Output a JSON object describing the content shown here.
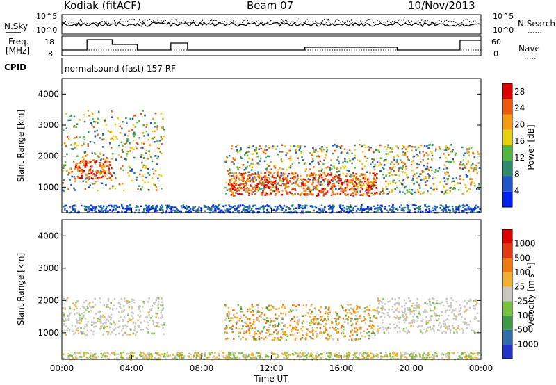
{
  "header": {
    "station": "Kodiak (fitACF)",
    "beam": "Beam 07",
    "date": "10/Nov/2013"
  },
  "params_panel": {
    "nsky_label": "N.Sky",
    "nsearch_label": "N.Search",
    "freq_label_line1": "Freq.",
    "freq_label_line2": "[MHz]",
    "nave_label": "Nave",
    "cpid_label": "CPID",
    "cpid_text": "normalsound (fast) 157 RF",
    "noise_ticks": [
      "10^5",
      "10^0"
    ],
    "freq_ticks": [
      "18",
      "8"
    ],
    "nave_ticks": [
      "60",
      "0"
    ]
  },
  "chart_data": [
    {
      "type": "heatmap",
      "name": "power",
      "xlabel": "",
      "ylabel": "Slant Range [km]",
      "xlim": [
        0,
        24
      ],
      "ylim": [
        180,
        4500
      ],
      "x_tick_labels": [
        "00:00",
        "04:00",
        "08:00",
        "12:00",
        "16:00",
        "20:00",
        "00:00"
      ],
      "y_ticks": [
        1000,
        2000,
        3000,
        4000
      ],
      "colorbar": {
        "label": "Power [dB]",
        "ticks": [
          4,
          8,
          12,
          16,
          20,
          24,
          28
        ],
        "range": [
          0,
          30
        ],
        "colors": [
          "#0022ee",
          "#1f55c8",
          "#2e8a6a",
          "#52b640",
          "#e8d10e",
          "#f39c12",
          "#ee5a0c",
          "#dd0000"
        ]
      },
      "regions": [
        {
          "t": [
            0.0,
            5.8
          ],
          "r": [
            900,
            3500
          ],
          "level": "medium"
        },
        {
          "t": [
            0.7,
            2.8
          ],
          "r": [
            1300,
            1900
          ],
          "level": "high"
        },
        {
          "t": [
            9.3,
            23.9
          ],
          "r": [
            800,
            2400
          ],
          "level": "medium"
        },
        {
          "t": [
            9.5,
            18.0
          ],
          "r": [
            750,
            1500
          ],
          "level": "high"
        },
        {
          "t": [
            0.0,
            24.0
          ],
          "r": [
            200,
            450
          ],
          "level": "low"
        }
      ]
    },
    {
      "type": "heatmap",
      "name": "velocity",
      "xlabel": "Time UT",
      "ylabel": "Slant Range [km]",
      "xlim": [
        0,
        24
      ],
      "ylim": [
        180,
        4500
      ],
      "x_tick_labels": [
        "00:00",
        "04:00",
        "08:00",
        "12:00",
        "16:00",
        "20:00",
        "00:00"
      ],
      "y_ticks": [
        1000,
        2000,
        3000,
        4000
      ],
      "colorbar": {
        "label": "Velocity [m s⁻¹]",
        "ticks": [
          "1000",
          "500",
          "100",
          "25",
          "-25",
          "-100",
          "-500",
          "-1000"
        ],
        "colors": [
          "#2233cc",
          "#2f6ea8",
          "#3e9a48",
          "#77c040",
          "#c8c8c0",
          "#f2b030",
          "#f07a10",
          "#e23a10",
          "#dd0000"
        ]
      },
      "regions": [
        {
          "t": [
            0.0,
            5.8
          ],
          "r": [
            950,
            2100
          ],
          "level": "ground"
        },
        {
          "t": [
            9.3,
            18.0
          ],
          "r": [
            800,
            1900
          ],
          "level": "away"
        },
        {
          "t": [
            18.0,
            23.9
          ],
          "r": [
            1000,
            2100
          ],
          "level": "ground"
        },
        {
          "t": [
            0.0,
            24.0
          ],
          "r": [
            200,
            420
          ],
          "level": "toward"
        }
      ]
    }
  ]
}
